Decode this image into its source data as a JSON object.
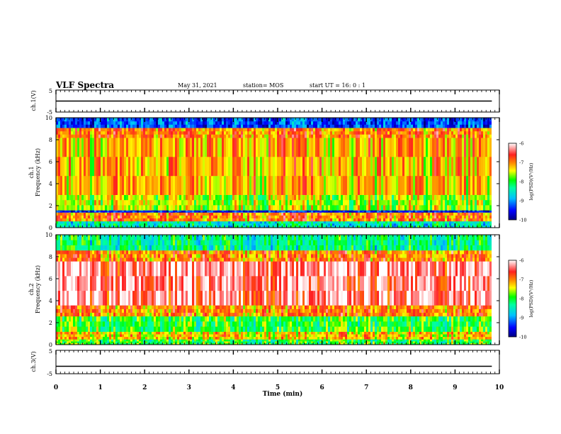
{
  "header": {
    "title": "VLF Spectra",
    "date": "May 31, 2021",
    "station": "station= MOS",
    "start": "start UT =  16: 0  : 1"
  },
  "chart_data": [
    {
      "type": "line",
      "panel": "ch1-waveform",
      "ylabel": "ch.1(V)",
      "ylim": [
        -5,
        5
      ],
      "yticks": [
        "5",
        "-5"
      ],
      "series": [
        {
          "x": [
            0,
            9.83
          ],
          "values": [
            0,
            0
          ]
        }
      ]
    },
    {
      "type": "heatmap",
      "panel": "ch1-spectrogram",
      "ylabel": "ch.1 Frequency (kHz)",
      "ylim": [
        0,
        10
      ],
      "yticks": [
        "0",
        "2",
        "4",
        "6",
        "8",
        "10"
      ],
      "xlim": [
        0,
        10
      ],
      "data_extent_min": 9.83,
      "bands": [
        {
          "fmin": 0,
          "fmax": 0.6,
          "level": -8.5
        },
        {
          "fmin": 0.6,
          "fmax": 1.4,
          "level": -7.0
        },
        {
          "fmin": 1.4,
          "fmax": 1.6,
          "level": -9.5
        },
        {
          "fmin": 1.6,
          "fmax": 3.0,
          "level": -7.6
        },
        {
          "fmin": 3.0,
          "fmax": 8.2,
          "level": -7.2
        },
        {
          "fmin": 8.2,
          "fmax": 9.1,
          "level": -7.0
        },
        {
          "fmin": 9.1,
          "fmax": 10,
          "level": -9.3
        }
      ],
      "colorbar": {
        "label": "log(PSD)(V²/Hz)",
        "ticks": [
          "-6",
          "-7",
          "-8",
          "-9",
          "-10"
        ],
        "range": [
          -10,
          -6
        ]
      }
    },
    {
      "type": "heatmap",
      "panel": "ch2-spectrogram",
      "ylabel": "ch.2 Frequency (kHz)",
      "ylim": [
        0,
        10
      ],
      "yticks": [
        "0",
        "2",
        "4",
        "6",
        "8",
        "10"
      ],
      "xlim": [
        0,
        10
      ],
      "data_extent_min": 9.83,
      "bands": [
        {
          "fmin": 0,
          "fmax": 0.5,
          "level": -8.0
        },
        {
          "fmin": 0.5,
          "fmax": 1.2,
          "level": -7.3
        },
        {
          "fmin": 1.2,
          "fmax": 2.6,
          "level": -8.0
        },
        {
          "fmin": 2.6,
          "fmax": 3.6,
          "level": -7.0
        },
        {
          "fmin": 3.6,
          "fmax": 7.6,
          "level": -6.3
        },
        {
          "fmin": 7.6,
          "fmax": 8.6,
          "level": -7.0
        },
        {
          "fmin": 8.6,
          "fmax": 10,
          "level": -8.3
        }
      ],
      "colorbar": {
        "label": "log(PSD)(V²/Hz)",
        "ticks": [
          "-6",
          "-7",
          "-8",
          "-9",
          "-10"
        ],
        "range": [
          -10,
          -6
        ]
      }
    },
    {
      "type": "line",
      "panel": "ch3-waveform",
      "ylabel": "ch.3(V)",
      "ylim": [
        -5,
        5
      ],
      "yticks": [
        "5",
        "-5"
      ],
      "series": [
        {
          "x": [
            0,
            9.83
          ],
          "values": [
            -1.8,
            -1.8
          ]
        }
      ]
    }
  ],
  "xaxis": {
    "label": "Time (min)",
    "ticks": [
      "0",
      "1",
      "2",
      "3",
      "4",
      "5",
      "6",
      "7",
      "8",
      "9",
      "10"
    ],
    "range": [
      0,
      10
    ]
  },
  "colors": {
    "colormap": [
      "#000080",
      "#0000ff",
      "#00c0ff",
      "#00ffa0",
      "#00ff00",
      "#ffff00",
      "#ff8000",
      "#ff2020",
      "#ffffff"
    ]
  }
}
